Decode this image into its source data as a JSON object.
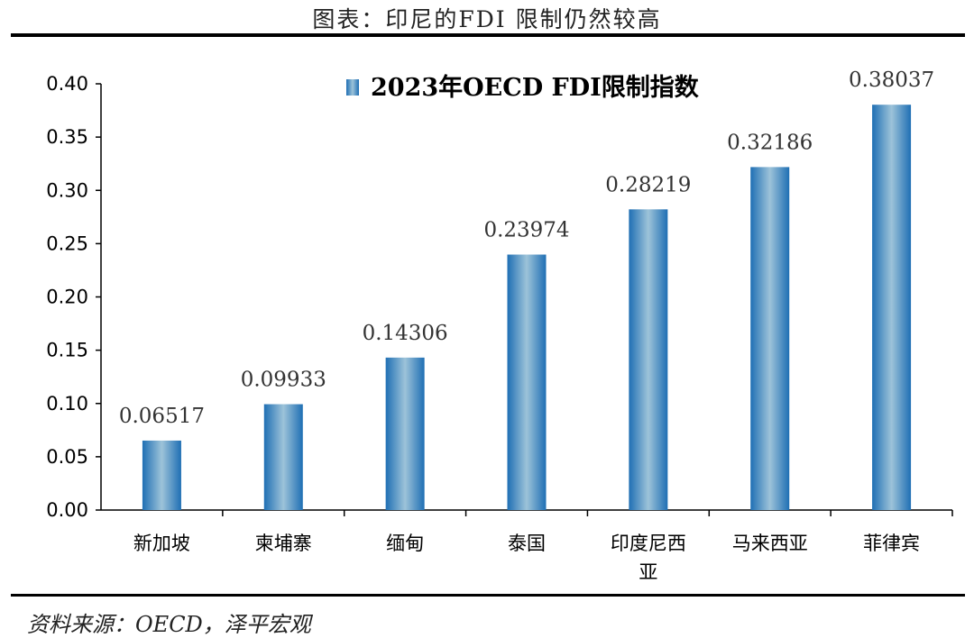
{
  "header": {
    "title": "图表：印尼的FDI 限制仍然较高"
  },
  "source": {
    "text": "资料来源：OECD，泽平宏观"
  },
  "chart_data": {
    "type": "bar",
    "title": "",
    "xlabel": "",
    "ylabel": "",
    "categories": [
      "新加坡",
      "柬埔寨",
      "缅甸",
      "泰国",
      "印度尼西亚",
      "马来西亚",
      "菲律宾"
    ],
    "series": [
      {
        "name": "2023年OECD FDI限制指数",
        "values": [
          0.06517,
          0.09933,
          0.14306,
          0.23974,
          0.28219,
          0.32186,
          0.38037
        ],
        "data_labels": [
          "0.06517",
          "0.09933",
          "0.14306",
          "0.23974",
          "0.28219",
          "0.32186",
          "0.38037"
        ]
      }
    ],
    "ylim": [
      0,
      0.4
    ],
    "yticks": [
      "0.00",
      "0.05",
      "0.10",
      "0.15",
      "0.20",
      "0.25",
      "0.30",
      "0.35",
      "0.40"
    ],
    "grid": false,
    "legend_position": "top-center",
    "colors": {
      "bar_dark": "#1f6fb4",
      "bar_light": "#9dc3d9",
      "axis": "#000000"
    }
  }
}
